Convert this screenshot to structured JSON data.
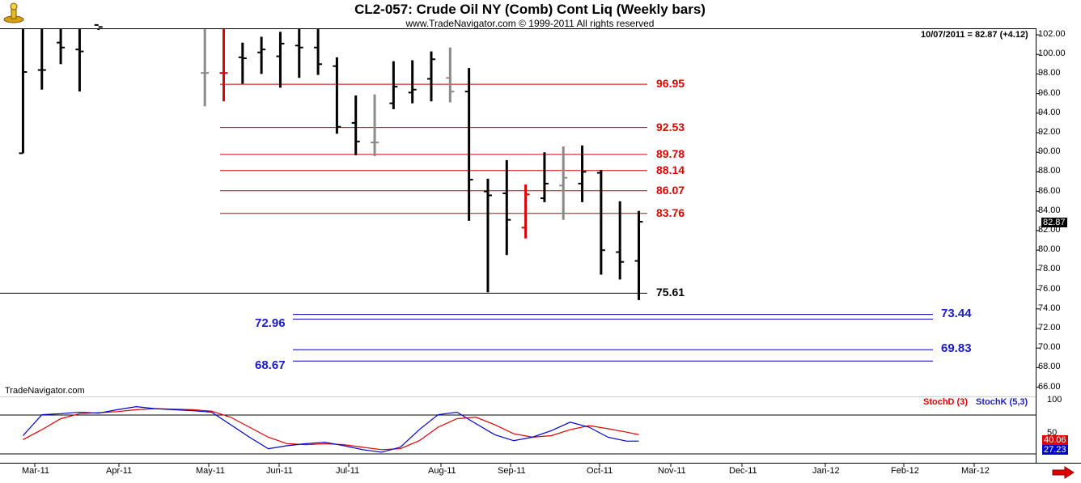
{
  "header": {
    "title": "CL2-057:  Crude Oil NY (Comb) Cont Liq  (Weekly bars)",
    "subtitle": "www.TradeNavigator.com © 1999-2011 All rights reserved"
  },
  "last_bar_info": "10/07/2011 = 82.87 (+4.12)",
  "last_price_marker": "82.87",
  "watermark": "TradeNavigator.com",
  "colors": {
    "up": "#000000",
    "red": "#e00000",
    "gray": "#8a8a8a",
    "blue_level": "#0000c0",
    "red_level": "#cc0000"
  },
  "icons": {
    "top_left": "signal-lamp-icon",
    "bottom_right": "scroll-right-arrow-icon"
  },
  "y_ticks": [
    "102.00",
    "100.00",
    "98.00",
    "96.00",
    "94.00",
    "92.00",
    "90.00",
    "88.00",
    "86.00",
    "84.00",
    "82.00",
    "80.00",
    "78.00",
    "76.00",
    "74.00",
    "72.00",
    "70.00",
    "68.00",
    "66.00"
  ],
  "ind_ticks": [
    "100",
    "50"
  ],
  "x_ticks": [
    "Mar-11",
    "Apr-11",
    "May-11",
    "Jun-11",
    "Jul-11",
    "Aug-11",
    "Sep-11",
    "Oct-11",
    "Nov-11",
    "Dec-11",
    "Jan-12",
    "Feb-12",
    "Mar-12"
  ],
  "indicator": {
    "stochd_label": "StochD (3)",
    "stochk_label": "StochK (5,3)",
    "stochd_last": "40.06",
    "stochk_last": "27.23"
  },
  "chart_data": {
    "type": "ohlc",
    "title": "CL2-057:  Crude Oil NY (Comb) Cont Liq  (Weekly bars)",
    "ylim": [
      65,
      103
    ],
    "xlim": [
      0,
      73
    ],
    "bars": [
      {
        "x": 1.2,
        "h": 103,
        "l": 89.9,
        "o": 89.9,
        "c": 98.2,
        "color": "black"
      },
      {
        "x": 2.3,
        "h": 103,
        "l": 96.4,
        "o": 98.4,
        "c": 98.4,
        "color": "black"
      },
      {
        "x": 3.4,
        "h": 103,
        "l": 99,
        "o": 101.2,
        "c": 100.7,
        "color": "black"
      },
      {
        "x": 4.5,
        "h": 103,
        "l": 96.2,
        "o": 100.5,
        "c": 100.3,
        "color": "black"
      },
      {
        "x": 5.6,
        "h": 103,
        "l": 102.5,
        "o": 103,
        "c": 102.8,
        "color": "black"
      },
      {
        "x": 11.8,
        "h": 103,
        "l": 94.7,
        "o": 98.1,
        "c": 98.1,
        "color": "gray"
      },
      {
        "x": 12.9,
        "h": 102.6,
        "l": 95.2,
        "o": 98.1,
        "c": 98.1,
        "color": "red"
      },
      {
        "x": 14.0,
        "h": 101.2,
        "l": 97.0,
        "o": 99.7,
        "c": 99.6,
        "color": "black"
      },
      {
        "x": 15.1,
        "h": 101.8,
        "l": 98.0,
        "o": 100.2,
        "c": 100.5,
        "color": "black"
      },
      {
        "x": 16.2,
        "h": 102.3,
        "l": 96.6,
        "o": 99.8,
        "c": 101.1,
        "color": "black"
      },
      {
        "x": 17.3,
        "h": 103,
        "l": 97.6,
        "o": 100.9,
        "c": 100.7,
        "color": "black"
      },
      {
        "x": 18.4,
        "h": 103,
        "l": 97.9,
        "o": 100.7,
        "c": 99.0,
        "color": "black"
      },
      {
        "x": 19.5,
        "h": 99.7,
        "l": 91.9,
        "o": 98.8,
        "c": 92.6,
        "color": "black"
      },
      {
        "x": 20.6,
        "h": 95.8,
        "l": 89.7,
        "o": 93.0,
        "c": 91.1,
        "color": "black"
      },
      {
        "x": 21.7,
        "h": 95.9,
        "l": 89.6,
        "o": 91.0,
        "c": 91.0,
        "color": "gray"
      },
      {
        "x": 22.8,
        "h": 99.3,
        "l": 94.4,
        "o": 95.0,
        "c": 96.7,
        "color": "black"
      },
      {
        "x": 23.9,
        "h": 99.4,
        "l": 95.0,
        "o": 96.1,
        "c": 96.4,
        "color": "black"
      },
      {
        "x": 25.0,
        "h": 100.3,
        "l": 95.2,
        "o": 97.5,
        "c": 99.5,
        "color": "black"
      },
      {
        "x": 26.1,
        "h": 100.7,
        "l": 95.1,
        "o": 97.6,
        "c": 96.2,
        "color": "gray"
      },
      {
        "x": 27.2,
        "h": 98.6,
        "l": 83.0,
        "o": 96.2,
        "c": 87.2,
        "color": "black"
      },
      {
        "x": 28.3,
        "h": 87.3,
        "l": 75.7,
        "o": 86.0,
        "c": 85.6,
        "color": "black"
      },
      {
        "x": 29.4,
        "h": 89.2,
        "l": 79.5,
        "o": 85.8,
        "c": 83.1,
        "color": "black"
      },
      {
        "x": 30.5,
        "h": 86.7,
        "l": 81.2,
        "o": 82.3,
        "c": 85.7,
        "color": "red"
      },
      {
        "x": 31.6,
        "h": 90.0,
        "l": 84.9,
        "o": 85.3,
        "c": 86.8,
        "color": "black"
      },
      {
        "x": 32.7,
        "h": 90.6,
        "l": 83.1,
        "o": 86.6,
        "c": 87.4,
        "color": "gray"
      },
      {
        "x": 33.8,
        "h": 90.7,
        "l": 84.9,
        "o": 86.8,
        "c": 88.0,
        "color": "black"
      },
      {
        "x": 34.9,
        "h": 88.2,
        "l": 77.5,
        "o": 87.9,
        "c": 80.0,
        "color": "black"
      },
      {
        "x": 36.0,
        "h": 85.0,
        "l": 77.0,
        "o": 79.8,
        "c": 78.8,
        "color": "black"
      },
      {
        "x": 37.1,
        "h": 84.0,
        "l": 74.9,
        "o": 78.9,
        "c": 82.9,
        "color": "black"
      }
    ],
    "levels": [
      {
        "value": 96.95,
        "label": "96.95",
        "color": "red",
        "x_from": 12.9
      },
      {
        "value": 92.53,
        "label": "92.53",
        "color": "red",
        "x_from": 12.9
      },
      {
        "value": 89.78,
        "label": "89.78",
        "color": "red",
        "x_from": 12.9
      },
      {
        "value": 88.14,
        "label": "88.14",
        "color": "red",
        "x_from": 12.9
      },
      {
        "value": 86.07,
        "label": "86.07",
        "color": "red",
        "x_from": 12.9
      },
      {
        "value": 83.76,
        "label": "83.76",
        "color": "red",
        "x_from": 12.9
      },
      {
        "value": 75.61,
        "label": "75.61",
        "color": "black",
        "x_from": 0
      }
    ],
    "projections": [
      {
        "value": 73.44,
        "label": "73.44",
        "label_side": "right"
      },
      {
        "value": 72.96,
        "label": "72.96",
        "label_side": "left"
      },
      {
        "value": 69.83,
        "label": "69.83",
        "label_side": "right"
      },
      {
        "value": 68.67,
        "label": "68.67",
        "label_side": "left"
      }
    ],
    "stochastic": {
      "ylim": [
        0,
        110
      ],
      "ref_lines": [
        80,
        20
      ],
      "x": [
        1.2,
        2.3,
        3.4,
        4.5,
        5.6,
        6.7,
        7.8,
        8.9,
        10.0,
        11.1,
        12.2,
        13.3,
        14.4,
        15.5,
        16.6,
        17.7,
        18.8,
        19.9,
        21.0,
        22.1,
        23.2,
        24.3,
        25.4,
        26.5,
        27.6,
        28.7,
        29.8,
        30.9,
        32.0,
        33.1,
        34.2,
        35.3,
        36.4,
        37.1
      ],
      "stochK": [
        38,
        80,
        82,
        85,
        83,
        90,
        96,
        92,
        90,
        88,
        85,
        60,
        35,
        12,
        18,
        22,
        25,
        18,
        10,
        5,
        15,
        50,
        80,
        85,
        62,
        40,
        28,
        35,
        48,
        65,
        55,
        35,
        27,
        27.23
      ],
      "stochD": [
        30,
        50,
        72,
        82,
        84,
        86,
        90,
        92,
        91,
        90,
        87,
        75,
        55,
        35,
        22,
        20,
        22,
        20,
        15,
        10,
        12,
        28,
        55,
        72,
        75,
        60,
        42,
        35,
        38,
        50,
        58,
        52,
        45,
        40.06
      ]
    }
  }
}
